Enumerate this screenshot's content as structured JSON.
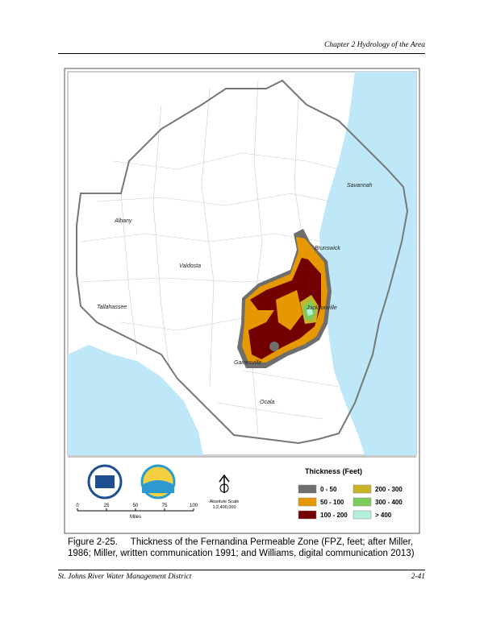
{
  "header": {
    "chapter": "Chapter 2 Hydrology of the Area"
  },
  "map": {
    "cities": [
      {
        "label": "Savannah"
      },
      {
        "label": "Albany"
      },
      {
        "label": "Brunswick"
      },
      {
        "label": "Valdosta"
      },
      {
        "label": "Jacksonville"
      },
      {
        "label": "Tallahassee"
      },
      {
        "label": "Gainesville"
      },
      {
        "label": "Ocala"
      }
    ],
    "legend": {
      "title": "Thickness (Feet)",
      "items": [
        {
          "label": "0 - 50",
          "color": "#6e6e6e"
        },
        {
          "label": "50 - 100",
          "color": "#e69800"
        },
        {
          "label": "100 - 200",
          "color": "#730000"
        },
        {
          "label": "200 - 300",
          "color": "#c8b428"
        },
        {
          "label": "300 - 400",
          "color": "#7ccc5c"
        },
        {
          "label": "> 400",
          "color": "#b4f0e0"
        }
      ]
    },
    "scale_bar": {
      "ticks": [
        "0",
        "25",
        "50",
        "75",
        "100"
      ],
      "unit": "Miles"
    },
    "scale_text": [
      "Absolute Scale",
      "1:2,400,000"
    ]
  },
  "caption": {
    "number": "Figure 2-25.",
    "text": "Thickness of the Fernandina Permeable Zone (FPZ, feet; after Miller, 1986; Miller, written communication 1991; and Williams, digital communication 2013)"
  },
  "footer": {
    "left": "St. Johns River Water Management District",
    "right": "2-41"
  }
}
